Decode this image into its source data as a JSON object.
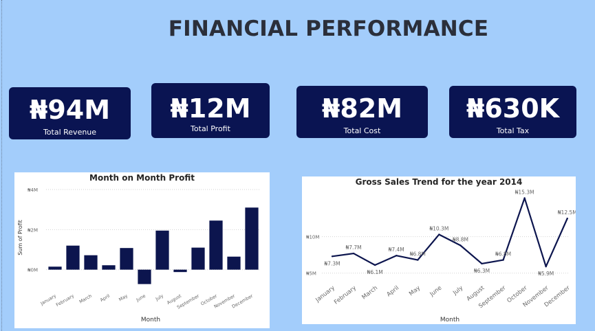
{
  "header": {
    "title": "FINANCIAL PERFORMANCE"
  },
  "kpis": [
    {
      "value": "₦94M",
      "label": "Total Revenue"
    },
    {
      "value": "₦12M",
      "label": "Total Profit"
    },
    {
      "value": "₦82M",
      "label": "Total Cost"
    },
    {
      "value": "₦630K",
      "label": "Total Tax"
    }
  ],
  "colors": {
    "page_bg": "#a3cdfb",
    "card": "#0a1452",
    "mark": "#0c154e"
  },
  "chart_data": [
    {
      "type": "bar",
      "title": "Month on Month Profit",
      "xlabel": "Month",
      "ylabel": "Sum of Profit",
      "categories": [
        "January",
        "February",
        "March",
        "April",
        "May",
        "June",
        "July",
        "August",
        "September",
        "October",
        "November",
        "December"
      ],
      "values": [
        0.15,
        1.2,
        0.72,
        0.22,
        1.08,
        -0.72,
        1.95,
        -0.12,
        1.1,
        2.45,
        0.65,
        3.1
      ],
      "ylim": [
        -0.8,
        4
      ],
      "yticks": [
        0,
        2,
        4
      ],
      "ytick_labels": [
        "₦0M",
        "₦2M",
        "₦4M"
      ],
      "grid": true,
      "legend": "none"
    },
    {
      "type": "line",
      "title": "Gross Sales Trend for the year 2014",
      "xlabel": "Month",
      "ylabel": "",
      "categories": [
        "January",
        "February",
        "March",
        "April",
        "May",
        "June",
        "July",
        "August",
        "September",
        "October",
        "November",
        "December"
      ],
      "values": [
        7.3,
        7.7,
        6.1,
        7.4,
        6.8,
        10.3,
        8.8,
        6.3,
        6.8,
        15.3,
        5.9,
        12.5
      ],
      "data_labels": [
        "₦7.3M",
        "₦7.7M",
        "₦6.1M",
        "₦7.4M",
        "₦6.8M",
        "₦10.3M",
        "₦8.8M",
        "₦6.3M",
        "₦6.8M",
        "₦15.3M",
        "₦5.9M",
        "₦12.5M"
      ],
      "ylim": [
        4.5,
        16
      ],
      "yticks": [
        5,
        10
      ],
      "ytick_labels": [
        "₦5M",
        "₦10M"
      ],
      "grid": true,
      "legend": "none"
    }
  ]
}
